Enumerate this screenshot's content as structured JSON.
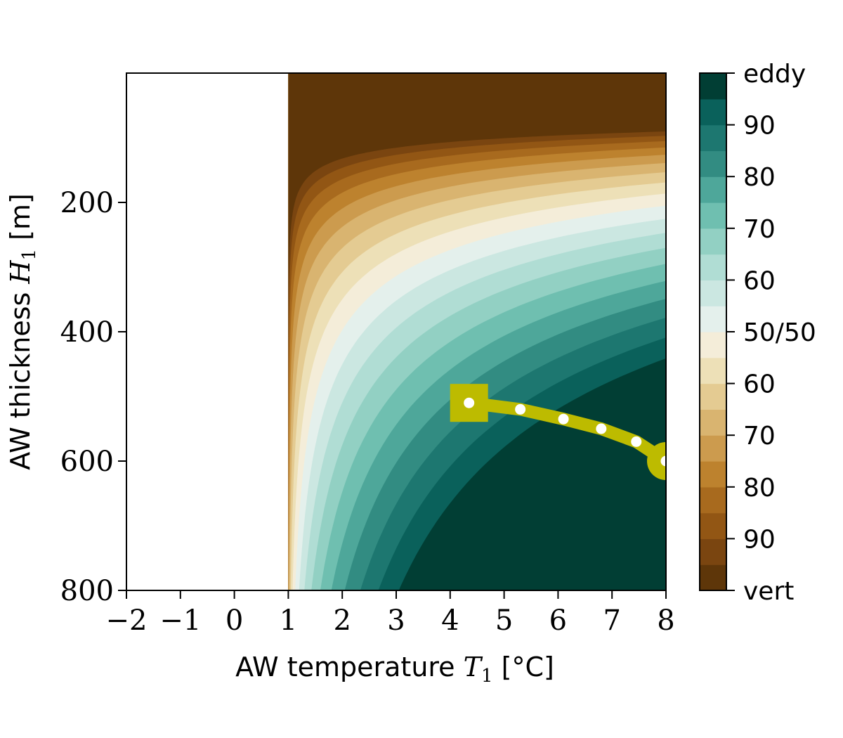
{
  "chart_data": {
    "type": "heatmap",
    "title": "",
    "xlabel": {
      "prefix": "AW temperature ",
      "symbol": "T",
      "subscript": "1",
      "unit": "[°C]"
    },
    "ylabel": {
      "prefix": "AW thickness ",
      "symbol": "H",
      "subscript": "1",
      "unit": "[m]"
    },
    "xlim": [
      -2,
      8
    ],
    "ylim": [
      800,
      0
    ],
    "y_inverted": true,
    "x_ticks": [
      -2,
      -1,
      0,
      1,
      2,
      3,
      4,
      5,
      6,
      7,
      8
    ],
    "x_tick_labels": [
      "−2",
      "−1",
      "0",
      "1",
      "2",
      "3",
      "4",
      "5",
      "6",
      "7",
      "8"
    ],
    "y_ticks": [
      200,
      400,
      600,
      800
    ],
    "y_tick_labels": [
      "200",
      "400",
      "600",
      "800"
    ],
    "masked_region": {
      "x_from": -2,
      "x_to": 1
    },
    "field": {
      "description": "percentage of heat transport: vertical (brown) vs eddy (teal)",
      "boundary_50_50": [
        {
          "x": 1.05,
          "y": 520
        },
        {
          "x": 1.3,
          "y": 430
        },
        {
          "x": 2,
          "y": 345
        },
        {
          "x": 3,
          "y": 300
        },
        {
          "x": 4,
          "y": 275
        },
        {
          "x": 5,
          "y": 258
        },
        {
          "x": 6,
          "y": 247
        },
        {
          "x": 7,
          "y": 238
        },
        {
          "x": 8,
          "y": 230
        }
      ]
    },
    "colorbar": {
      "ticks": [
        "vert",
        "90",
        "80",
        "70",
        "60",
        "50/50",
        "60",
        "70",
        "80",
        "90",
        "eddy"
      ],
      "levels": 20,
      "colors": [
        "#5e3609",
        "#7a4510",
        "#925614",
        "#a86a1e",
        "#bd822e",
        "#cc9b4e",
        "#d9b470",
        "#e4cb92",
        "#ede0b7",
        "#f4edd9",
        "#e4f0ec",
        "#cbe7e1",
        "#b0ddd4",
        "#92d0c3",
        "#6fbfb0",
        "#4ea79a",
        "#328c82",
        "#1d7770",
        "#0a615b",
        "#013e34"
      ]
    },
    "series": [
      {
        "marker_points": [
          {
            "x": 4.35,
            "y": 510
          },
          {
            "x": 5.3,
            "y": 520
          },
          {
            "x": 6.1,
            "y": 535
          },
          {
            "x": 6.8,
            "y": 550
          },
          {
            "x": 7.45,
            "y": 570
          },
          {
            "x": 8,
            "y": 600
          }
        ],
        "start_marker": "square",
        "end_marker": "circle",
        "color": "#bdbb00"
      }
    ]
  }
}
